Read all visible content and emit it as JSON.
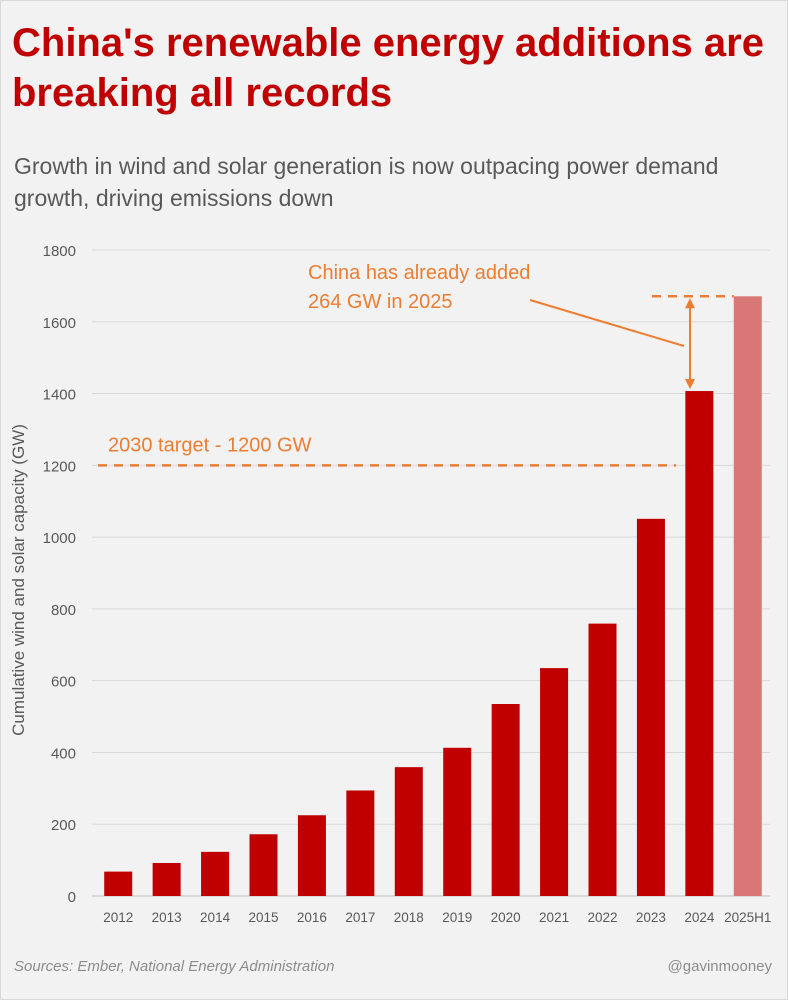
{
  "header": {
    "title": "China's renewable energy additions are breaking all records",
    "subtitle": "Growth in wind and solar generation is now outpacing power demand growth, driving emissions down"
  },
  "footer": {
    "sources": "Sources: Ember, National Energy Administration",
    "handle": "@gavinmooney"
  },
  "colors": {
    "bar": "#c00000",
    "bar_highlight": "#d97777",
    "annotation": "#ed7d31",
    "grid": "#d9d9d9",
    "axis_text": "#595959"
  },
  "chart_data": {
    "type": "bar",
    "title": "China's renewable energy additions are breaking all records",
    "subtitle": "Growth in wind and solar generation is now outpacing power demand growth, driving emissions down",
    "xlabel": "",
    "ylabel": "Cumulative wind and solar capacity (GW)",
    "ylim": [
      0,
      1800
    ],
    "yticks": [
      0,
      200,
      400,
      600,
      800,
      1000,
      1200,
      1400,
      1600,
      1800
    ],
    "grid": true,
    "categories": [
      "2012",
      "2013",
      "2014",
      "2015",
      "2016",
      "2017",
      "2018",
      "2019",
      "2020",
      "2021",
      "2022",
      "2023",
      "2024",
      "2025H1"
    ],
    "values": [
      68,
      92,
      123,
      172,
      225,
      294,
      359,
      413,
      535,
      635,
      759,
      1051,
      1407,
      1671
    ],
    "highlight_category": "2025H1",
    "annotations": {
      "target_line": {
        "value": 1200,
        "label": "2030 target - 1200 GW"
      },
      "added": {
        "label_line1": "China has already added",
        "label_line2": "264 GW in 2025",
        "from": 1407,
        "to": 1671
      }
    }
  }
}
